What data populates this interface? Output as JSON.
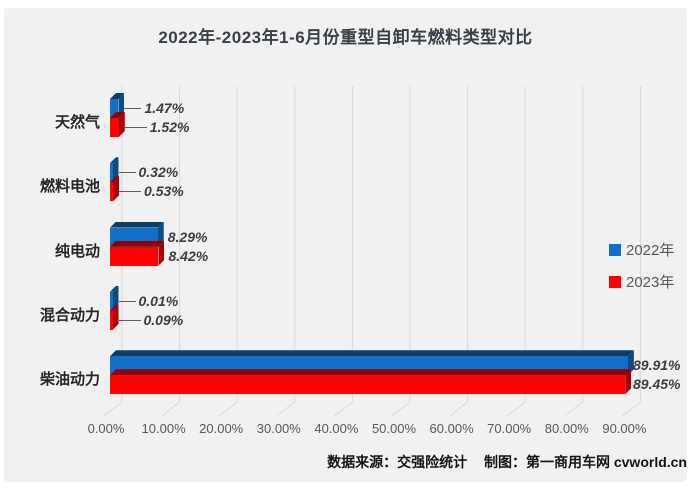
{
  "title": "2022年-2023年1-6月份重型自卸车燃料类型对比",
  "footer": {
    "source_label": "数据来源：交强险统计",
    "maker_label": "制图：第一商用车网 cvworld.cn"
  },
  "colors": {
    "bar_2022": "#1170C5",
    "bar_2023": "#FE0101",
    "panel_background": "#F1F1F1",
    "gridline": "#D9D9D9",
    "category_text": "#262626",
    "tick_text": "#595959",
    "value_label_text": "#3D3D3D"
  },
  "chart_data": {
    "type": "bar",
    "orientation": "horizontal-3d",
    "title": "2022年-2023年1-6月份重型自卸车燃料类型对比",
    "categories": [
      "天然气",
      "燃料电池",
      "纯电动",
      "混合动力",
      "柴油动力"
    ],
    "series": [
      {
        "name": "2022年",
        "color": "#1170C5",
        "values": [
          1.47,
          0.32,
          8.29,
          0.01,
          89.91
        ],
        "labels": [
          "1.47%",
          "0.32%",
          "8.29%",
          "0.01%",
          "89.91%"
        ]
      },
      {
        "name": "2023年",
        "color": "#FE0101",
        "values": [
          1.52,
          0.53,
          8.42,
          0.09,
          89.45
        ],
        "labels": [
          "1.52%",
          "0.53%",
          "8.42%",
          "0.09%",
          "89.45%"
        ]
      }
    ],
    "x_ticks": [
      "0.00%",
      "10.00%",
      "20.00%",
      "30.00%",
      "40.00%",
      "50.00%",
      "60.00%",
      "70.00%",
      "80.00%",
      "90.00%"
    ],
    "xlabel": "",
    "ylabel": "",
    "xlim": [
      0,
      90
    ],
    "grid": true,
    "legend_position": "middle-right"
  }
}
